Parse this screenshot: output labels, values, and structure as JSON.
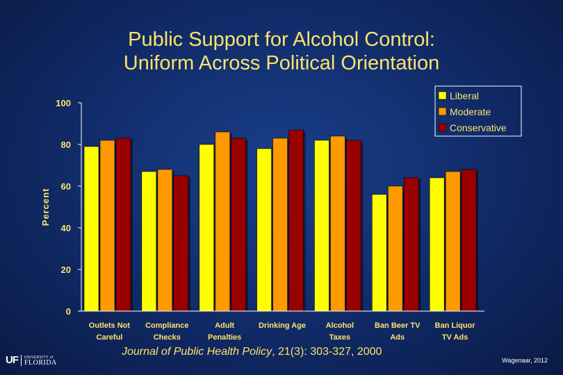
{
  "header": {
    "title_line1": "Public Support for Alcohol Control:",
    "title_line2": "Uniform Across Political Orientation"
  },
  "footer": {
    "citation_journal": "Journal of Public Health Policy",
    "citation_rest": ", 21(3): 303-327, 2000",
    "credit": "Wagenaar, 2012",
    "logo_uf": "UF",
    "logo_university": "UNIVERSITY of",
    "logo_florida": "FLORIDA"
  },
  "chart_data": {
    "type": "bar",
    "title": "Public Support for Alcohol Control: Uniform Across Political Orientation",
    "xlabel": "",
    "ylabel": "Percent",
    "ylim": [
      0,
      100
    ],
    "yticks": [
      0,
      20,
      40,
      60,
      80,
      100
    ],
    "grid": false,
    "legend_position": "top-right",
    "categories": [
      [
        "Outlets Not",
        "Careful"
      ],
      [
        "Compliance",
        "Checks"
      ],
      [
        "Adult",
        "Penalties"
      ],
      [
        "Drinking Age"
      ],
      [
        "Alcohol",
        "Taxes"
      ],
      [
        "Ban Beer TV",
        "Ads"
      ],
      [
        "Ban Liquor",
        "TV Ads"
      ]
    ],
    "series": [
      {
        "name": "Liberal",
        "color": "#ffff00",
        "values": [
          79,
          67,
          80,
          78,
          82,
          56,
          64
        ]
      },
      {
        "name": "Moderate",
        "color": "#ff9900",
        "values": [
          82,
          68,
          86,
          83,
          84,
          60,
          67
        ]
      },
      {
        "name": "Conservative",
        "color": "#990000",
        "values": [
          83,
          65,
          83,
          87,
          82,
          64,
          68
        ]
      }
    ]
  },
  "colors": {
    "text": "#fde46a",
    "axis": "#ffffff"
  }
}
